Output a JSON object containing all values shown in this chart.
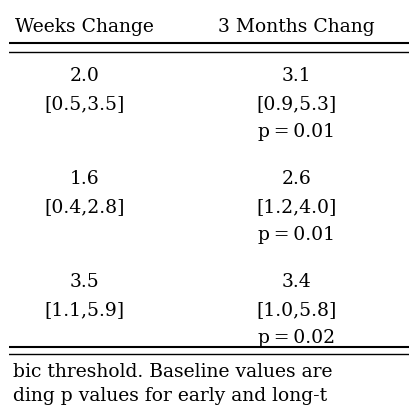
{
  "col1_header": "Weeks Change",
  "col2_header": "3 Months Chang",
  "rows": [
    {
      "col1": [
        "2.0",
        "[0.5,3.5]",
        ""
      ],
      "col2": [
        "3.1",
        "[0.9,5.3]",
        "p = 0.01"
      ]
    },
    {
      "col1": [
        "1.6",
        "[0.4,2.8]",
        ""
      ],
      "col2": [
        "2.6",
        "[1.2,4.0]",
        "p = 0.01"
      ]
    },
    {
      "col1": [
        "3.5",
        "[1.1,5.9]",
        ""
      ],
      "col2": [
        "3.4",
        "[1.0,5.8]",
        "p = 0.02"
      ]
    }
  ],
  "footer_lines": [
    "bic threshold. Baseline values are",
    "ding p values for early and long-t"
  ],
  "bg_color": "#ffffff",
  "text_color": "#000000",
  "font_size": 13.5,
  "header_font_size": 13.5,
  "footer_font_size": 13.5
}
